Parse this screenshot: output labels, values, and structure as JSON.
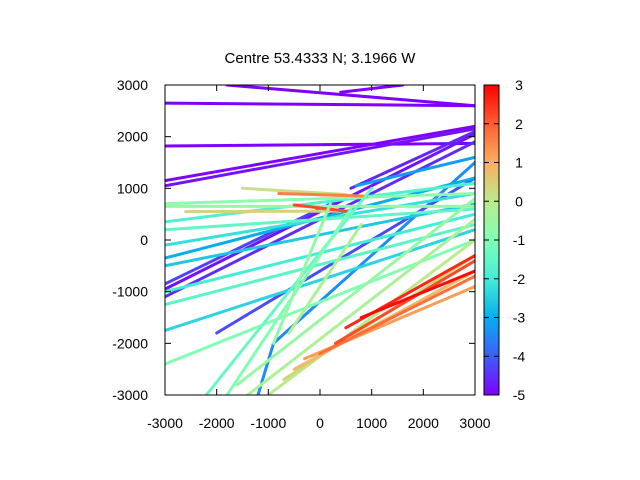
{
  "chart_data": {
    "type": "scatter",
    "title": "Centre 53.4333 N; 3.1966  W",
    "xlabel": "",
    "ylabel": "",
    "xlim": [
      -3000,
      3000
    ],
    "ylim": [
      -3000,
      3000
    ],
    "x_ticks": [
      "-3000",
      "-2000",
      "-1000",
      "0",
      "1000",
      "2000",
      "3000"
    ],
    "y_ticks": [
      "3000",
      "2000",
      "1000",
      "0",
      "-1000",
      "-2000",
      "-3000"
    ],
    "colorbar": {
      "range": [
        -5,
        3
      ],
      "ticks": [
        "3",
        "2",
        "1",
        "0",
        "-1",
        "-2",
        "-3",
        "-4",
        "-5"
      ],
      "colors": [
        "#8000ff",
        "#3c5ef9",
        "#06aeed",
        "#43edd7",
        "#80ffb4",
        "#bceb8c",
        "#f9ae61",
        "#ff5e31",
        "#ff0000"
      ]
    },
    "grid": false,
    "legend": "none",
    "tracks": [
      {
        "points": [
          [
            -3000,
            2650
          ],
          [
            3000,
            2600
          ]
        ],
        "value": -5
      },
      {
        "points": [
          [
            -1800,
            3000
          ],
          [
            3000,
            2600
          ]
        ],
        "value": -5
      },
      {
        "points": [
          [
            400,
            2860
          ],
          [
            1600,
            3000
          ]
        ],
        "value": -5
      },
      {
        "points": [
          [
            -3000,
            1820
          ],
          [
            3000,
            1870
          ]
        ],
        "value": -5
      },
      {
        "points": [
          [
            -3000,
            1150
          ],
          [
            3000,
            2200
          ]
        ],
        "value": -5
      },
      {
        "points": [
          [
            -3000,
            1050
          ],
          [
            3000,
            2150
          ]
        ],
        "value": -4.8
      },
      {
        "points": [
          [
            600,
            1000
          ],
          [
            3000,
            2100
          ]
        ],
        "value": -4.6
      },
      {
        "points": [
          [
            -3000,
            -950
          ],
          [
            3000,
            2050
          ]
        ],
        "value": -4.8
      },
      {
        "points": [
          [
            -3000,
            -1100
          ],
          [
            3000,
            1900
          ]
        ],
        "value": -4.5
      },
      {
        "points": [
          [
            -3000,
            -850
          ],
          [
            300,
            750
          ]
        ],
        "value": -4.3
      },
      {
        "points": [
          [
            -1200,
            -3000
          ],
          [
            -900,
            -2000
          ],
          [
            3000,
            1500
          ]
        ],
        "value": -3.4
      },
      {
        "points": [
          [
            -2000,
            -1800
          ],
          [
            3000,
            1200
          ]
        ],
        "value": -4.2
      },
      {
        "points": [
          [
            700,
            1050
          ],
          [
            3000,
            1600
          ]
        ],
        "value": -3.2
      },
      {
        "points": [
          [
            -3000,
            -350
          ],
          [
            3000,
            1200
          ]
        ],
        "value": -3.0
      },
      {
        "points": [
          [
            -3000,
            -500
          ],
          [
            3000,
            700
          ]
        ],
        "value": -2.6
      },
      {
        "points": [
          [
            -3000,
            -100
          ],
          [
            3000,
            900
          ]
        ],
        "value": -2.2
      },
      {
        "points": [
          [
            -3000,
            350
          ],
          [
            3000,
            1100
          ]
        ],
        "value": -1.8
      },
      {
        "points": [
          [
            -3000,
            200
          ],
          [
            3000,
            600
          ]
        ],
        "value": -1.5
      },
      {
        "points": [
          [
            -3000,
            -1000
          ],
          [
            3000,
            500
          ]
        ],
        "value": -2.0
      },
      {
        "points": [
          [
            -3000,
            -1250
          ],
          [
            3000,
            300
          ]
        ],
        "value": -1.6
      },
      {
        "points": [
          [
            -3000,
            -1750
          ],
          [
            3000,
            200
          ]
        ],
        "value": -2.4
      },
      {
        "points": [
          [
            -3000,
            -2400
          ],
          [
            3000,
            0
          ]
        ],
        "value": -1.0
      },
      {
        "points": [
          [
            -3000,
            700
          ],
          [
            3000,
            900
          ]
        ],
        "value": -0.8
      },
      {
        "points": [
          [
            -3000,
            650
          ],
          [
            3000,
            650
          ]
        ],
        "value": -0.6
      },
      {
        "points": [
          [
            -2600,
            550
          ],
          [
            400,
            560
          ]
        ],
        "value": 0.4
      },
      {
        "points": [
          [
            -1500,
            1000
          ],
          [
            500,
            880
          ]
        ],
        "value": 0.2
      },
      {
        "points": [
          [
            -800,
            900
          ],
          [
            900,
            850
          ]
        ],
        "value": 1.6
      },
      {
        "points": [
          [
            -500,
            680
          ],
          [
            500,
            560
          ]
        ],
        "value": 2.2
      },
      {
        "points": [
          [
            -1600,
            -2800
          ],
          [
            3000,
            800
          ]
        ],
        "value": -0.6
      },
      {
        "points": [
          [
            -1400,
            -3000
          ],
          [
            3000,
            400
          ]
        ],
        "value": -0.3
      },
      {
        "points": [
          [
            -1000,
            -3000
          ],
          [
            3000,
            0
          ]
        ],
        "value": 0.0
      },
      {
        "points": [
          [
            -700,
            -2700
          ],
          [
            3000,
            -300
          ]
        ],
        "value": 0.4
      },
      {
        "points": [
          [
            -500,
            -2500
          ],
          [
            3000,
            -600
          ]
        ],
        "value": 0.8
      },
      {
        "points": [
          [
            -300,
            -2300
          ],
          [
            3000,
            -900
          ]
        ],
        "value": 1.2
      },
      {
        "points": [
          [
            0,
            -2200
          ],
          [
            3000,
            -700
          ]
        ],
        "value": 1.8
      },
      {
        "points": [
          [
            300,
            -2000
          ],
          [
            3000,
            -400
          ]
        ],
        "value": 2.2
      },
      {
        "points": [
          [
            500,
            -1700
          ],
          [
            3000,
            -300
          ]
        ],
        "value": 2.6
      },
      {
        "points": [
          [
            800,
            -1500
          ],
          [
            3000,
            -600
          ]
        ],
        "value": 2.9
      },
      {
        "points": [
          [
            -2200,
            -3000
          ],
          [
            1000,
            1000
          ]
        ],
        "value": -1.4
      },
      {
        "points": [
          [
            -1800,
            -3000
          ],
          [
            600,
            600
          ]
        ],
        "value": -1.0
      },
      {
        "points": [
          [
            -900,
            -2000
          ],
          [
            200,
            700
          ]
        ],
        "value": -0.7
      },
      {
        "points": [
          [
            -600,
            -1800
          ],
          [
            800,
            300
          ]
        ],
        "value": -0.3
      }
    ]
  }
}
